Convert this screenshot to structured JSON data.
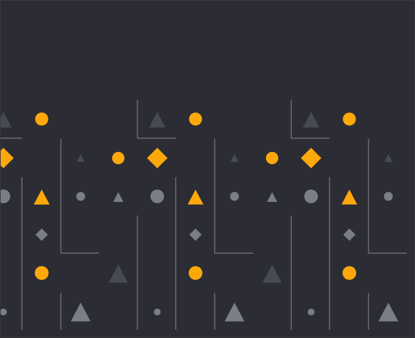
{
  "palette": {
    "background": "#2c2d34",
    "line": "#8a8c96",
    "accent": "#ffa80a",
    "shape_light": "#7b7d87",
    "shape_dark": "#484a53",
    "shape_mid": "#5f616b"
  },
  "pattern": {
    "repeat_count": 3,
    "shape_kinds": [
      "circle",
      "triangle",
      "diamond"
    ]
  }
}
